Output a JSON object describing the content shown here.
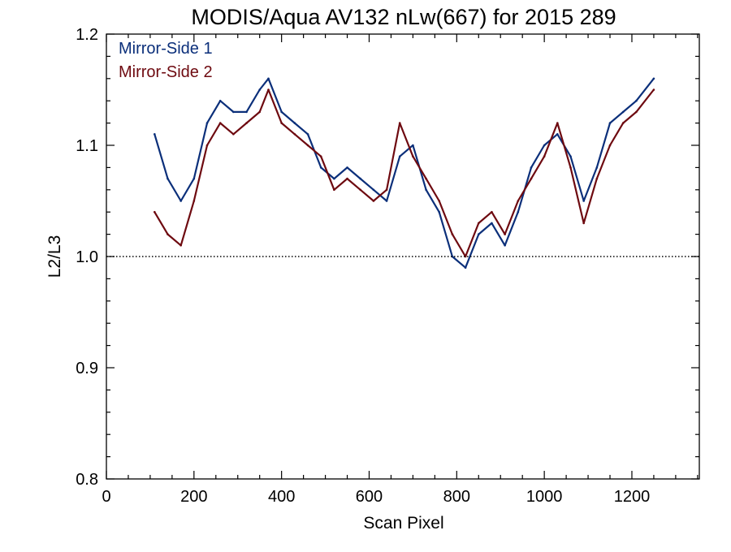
{
  "chart_data": {
    "type": "line",
    "title": "MODIS/Aqua AV132 nLw(667) for 2015 289",
    "xlabel": "Scan Pixel",
    "ylabel": "L2/L3",
    "xlim": [
      0,
      1354
    ],
    "ylim": [
      0.8,
      1.2
    ],
    "xticks": [
      0,
      200,
      400,
      600,
      800,
      1000,
      1200
    ],
    "xtick_labels": [
      "0",
      "200",
      "400",
      "600",
      "800",
      "1000",
      "1200"
    ],
    "yticks": [
      0.8,
      0.9,
      1.0,
      1.1,
      1.2
    ],
    "ytick_labels": [
      "0.8",
      "0.9",
      "1.0",
      "1.1",
      "1.2"
    ],
    "reference_line": {
      "y": 1.0,
      "style": "dotted"
    },
    "grid": false,
    "legend": {
      "placement": "top-left"
    },
    "colors": {
      "mirror_side_1": "#0b2f7a",
      "mirror_side_2": "#6e0a10"
    },
    "x": [
      110,
      140,
      170,
      200,
      230,
      260,
      290,
      320,
      350,
      370,
      400,
      430,
      460,
      490,
      520,
      550,
      580,
      610,
      640,
      670,
      700,
      730,
      760,
      790,
      820,
      850,
      880,
      910,
      940,
      970,
      1000,
      1030,
      1060,
      1090,
      1120,
      1150,
      1180,
      1210,
      1250
    ],
    "series": [
      {
        "name": "Mirror-Side 1",
        "values": [
          1.11,
          1.07,
          1.05,
          1.07,
          1.12,
          1.14,
          1.13,
          1.13,
          1.15,
          1.16,
          1.13,
          1.12,
          1.11,
          1.08,
          1.07,
          1.08,
          1.07,
          1.06,
          1.05,
          1.09,
          1.1,
          1.06,
          1.04,
          1.0,
          0.99,
          1.02,
          1.03,
          1.01,
          1.04,
          1.08,
          1.1,
          1.11,
          1.09,
          1.05,
          1.08,
          1.12,
          1.13,
          1.14,
          1.16
        ]
      },
      {
        "name": "Mirror-Side 2",
        "values": [
          1.04,
          1.02,
          1.01,
          1.05,
          1.1,
          1.12,
          1.11,
          1.12,
          1.13,
          1.15,
          1.12,
          1.11,
          1.1,
          1.09,
          1.06,
          1.07,
          1.06,
          1.05,
          1.06,
          1.12,
          1.09,
          1.07,
          1.05,
          1.02,
          1.0,
          1.03,
          1.04,
          1.02,
          1.05,
          1.07,
          1.09,
          1.12,
          1.08,
          1.03,
          1.07,
          1.1,
          1.12,
          1.13,
          1.15
        ]
      }
    ]
  }
}
